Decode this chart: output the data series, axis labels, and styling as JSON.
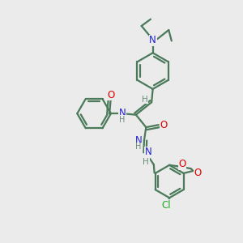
{
  "bg": "#ebebeb",
  "bc": "#4a7a5a",
  "colors": {
    "O": "#dd0000",
    "N": "#2222cc",
    "Cl": "#22aa22",
    "H": "#6a8a7a",
    "C": "#4a7a5a"
  },
  "figsize": [
    3.0,
    3.0
  ],
  "dpi": 100
}
